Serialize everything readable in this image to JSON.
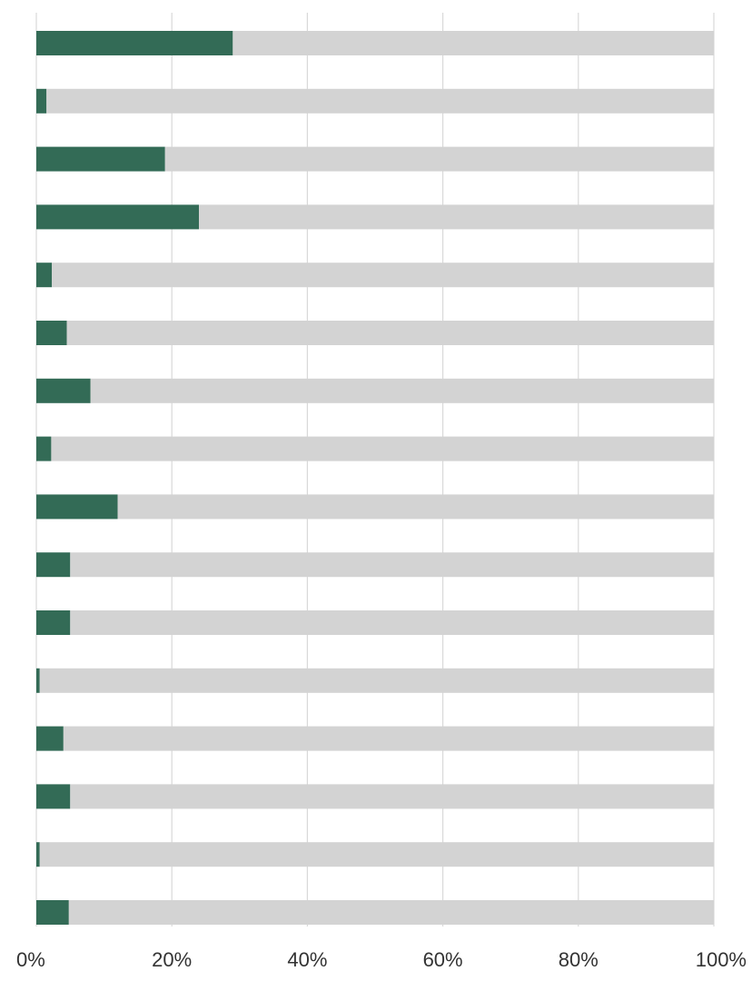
{
  "chart_data": {
    "type": "bar",
    "orientation": "horizontal",
    "stacked": "100%",
    "title": "",
    "xlabel": "",
    "ylabel": "",
    "xlim": [
      0,
      100
    ],
    "x_ticks": [
      "0%",
      "20%",
      "40%",
      "60%",
      "80%",
      "100%"
    ],
    "x_tick_values": [
      0,
      20,
      40,
      60,
      80,
      100
    ],
    "grid": "vertical",
    "legend": "none",
    "categories": [
      "",
      "",
      "",
      "",
      "",
      "",
      "",
      "",
      "",
      "",
      "",
      "",
      "",
      "",
      "",
      ""
    ],
    "series": [
      {
        "color": "#336b56",
        "values": [
          29,
          1.5,
          19,
          24,
          2.3,
          4.5,
          8,
          2.2,
          12,
          5,
          5,
          0.5,
          4,
          5,
          0.5,
          4.8
        ]
      },
      {
        "color": "#d3d3d3",
        "values": [
          71,
          98.5,
          81,
          76,
          97.7,
          95.5,
          92,
          97.8,
          88,
          95,
          95,
          99.5,
          96,
          95,
          99.5,
          95.2
        ]
      }
    ],
    "gridline_color": "#d9d9d9"
  }
}
